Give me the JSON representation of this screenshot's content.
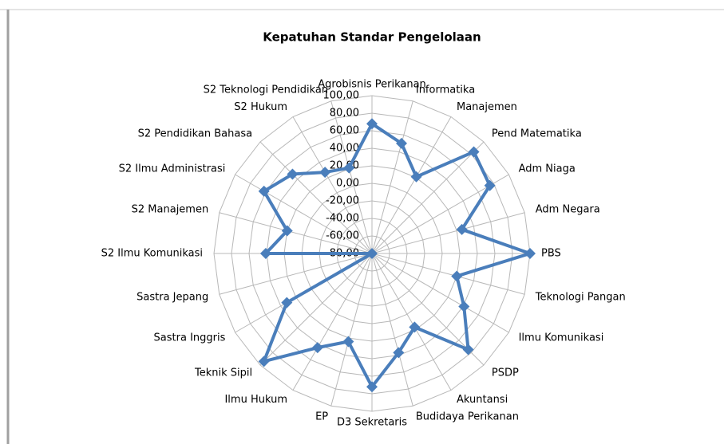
{
  "chart_data": {
    "type": "radar",
    "title": "Kepatuhan Standar Pengelolaan",
    "categories": [
      "Agrobisnis Perikanan",
      "Informatika",
      "Manajemen",
      "Pend Matematika",
      "Adm Niaga",
      "Adm Negara",
      "PBS",
      "Teknologi Pangan",
      "Ilmu  Komunikasi",
      "PSDP",
      "Akuntansi",
      "Budidaya Perikanan",
      "D3 Sekretaris",
      "EP",
      "Ilmu Hukum",
      "Teknik Sipil",
      "Sastra Inggris",
      "Sastra Jepang",
      "S2 Ilmu Komunikasi",
      "S2 Manajemen",
      "S2 Ilmu Administrasi",
      "S2 Pendidikan Bahasa",
      "S2 Hukum",
      "S2 Teknologi Pendidikan"
    ],
    "values": [
      68,
      50,
      21,
      84,
      75,
      26,
      100,
      20,
      41,
      75,
      17,
      37,
      72,
      24,
      44,
      94,
      32,
      -80,
      41,
      20,
      62,
      48,
      27,
      21
    ],
    "color": "#4a7ebb",
    "ylim": [
      -80,
      100
    ],
    "yticks": [
      {
        "value": -80,
        "label": "-80,00"
      },
      {
        "value": -60,
        "label": "-60,00"
      },
      {
        "value": -40,
        "label": "-40,00"
      },
      {
        "value": -20,
        "label": "-20,00"
      },
      {
        "value": 0,
        "label": "0,00"
      },
      {
        "value": 20,
        "label": "20,00"
      },
      {
        "value": 40,
        "label": "40,00"
      },
      {
        "value": 60,
        "label": "60,00"
      },
      {
        "value": 80,
        "label": "80,00"
      },
      {
        "value": 100,
        "label": "100,00"
      }
    ],
    "grid": true
  }
}
